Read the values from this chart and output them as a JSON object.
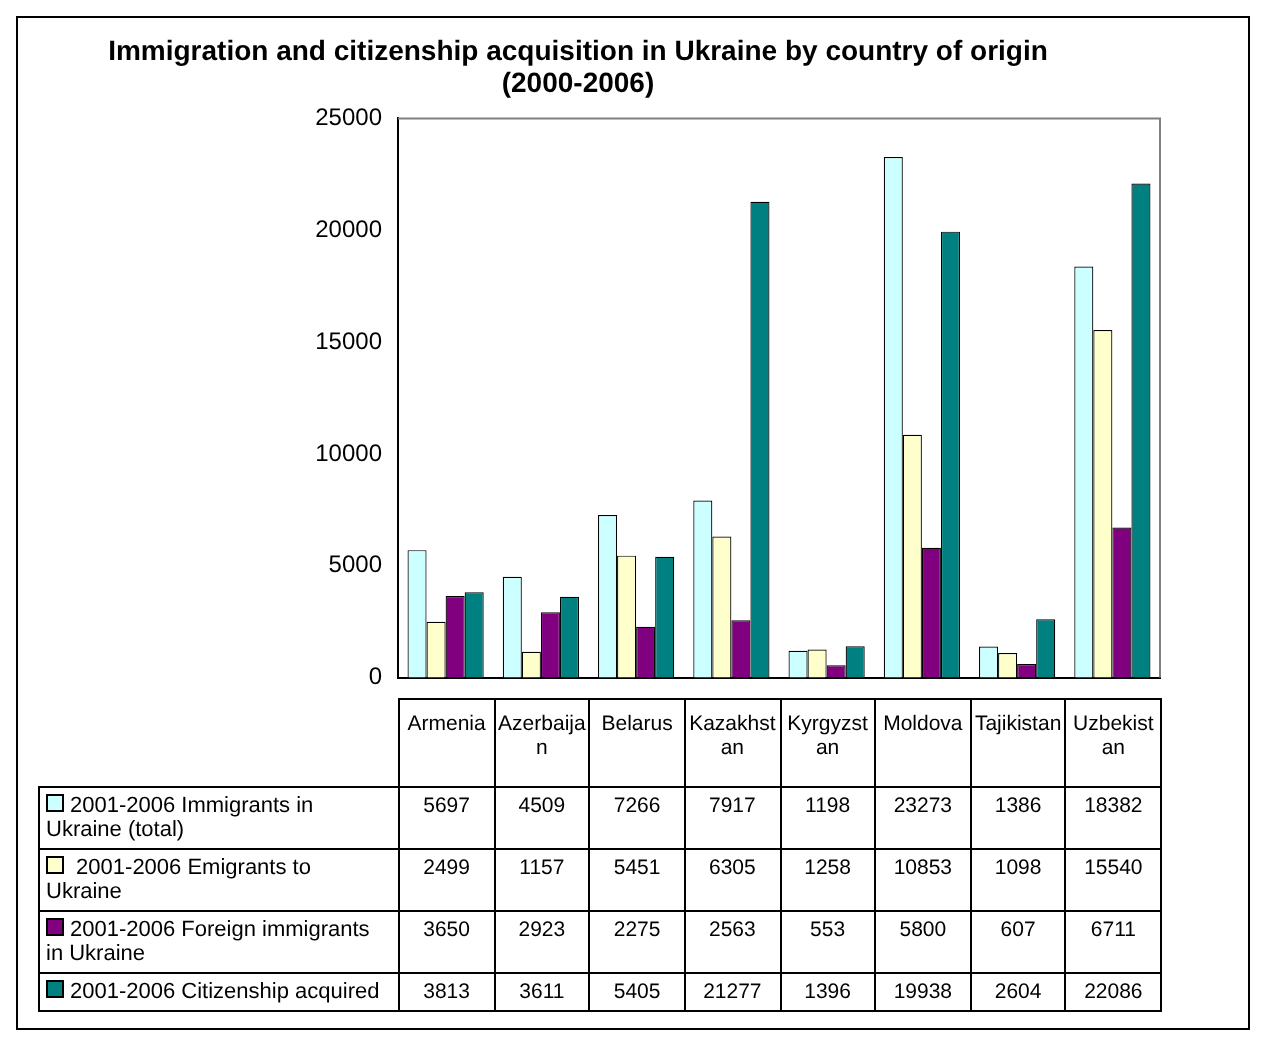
{
  "chart_data": {
    "type": "bar",
    "title": "Immigration and citizenship acquisition in Ukraine  by country of origin  (2000-2006)",
    "categories": [
      "Armenia",
      "Azerbaijan",
      "Belarus",
      "Kazakhstan",
      "Kyrgyzstan",
      "Moldova",
      "Tajikistan",
      "Uzbekistan"
    ],
    "series": [
      {
        "name": "2001-2006 Immigrants in Ukraine (total)",
        "color": "#ccffff",
        "values": [
          5697,
          4509,
          7266,
          7917,
          1198,
          23273,
          1386,
          18382
        ]
      },
      {
        "name": " 2001-2006 Emigrants to Ukraine",
        "color": "#ffffcc",
        "values": [
          2499,
          1157,
          5451,
          6305,
          1258,
          10853,
          1098,
          15540
        ]
      },
      {
        "name": "2001-2006 Foreign immigrants in Ukraine",
        "color": "#800080",
        "values": [
          3650,
          2923,
          2275,
          2563,
          553,
          5800,
          607,
          6711
        ]
      },
      {
        "name": "2001-2006 Citizenship acquired",
        "color": "#008080",
        "values": [
          3813,
          3611,
          5405,
          21277,
          1396,
          19938,
          2604,
          22086
        ]
      }
    ],
    "ylim": [
      0,
      25000
    ],
    "yticks": [
      0,
      5000,
      10000,
      15000,
      20000,
      25000
    ],
    "data_labels": true,
    "legend": "bottom"
  }
}
